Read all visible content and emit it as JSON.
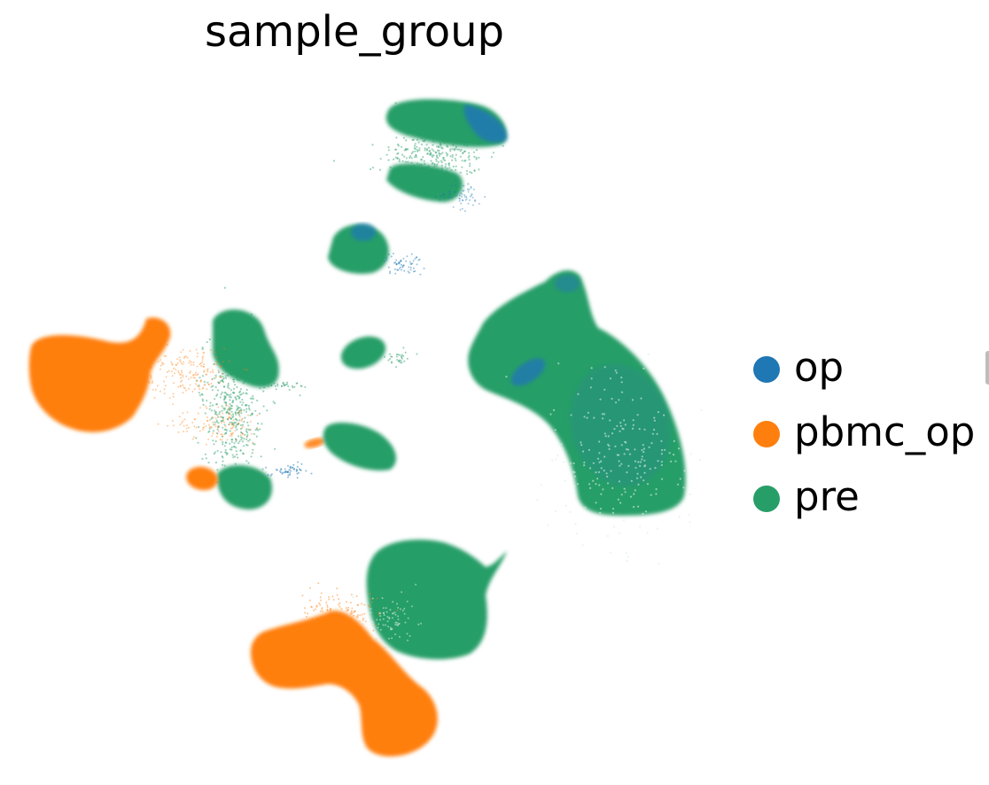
{
  "chart_data": {
    "type": "scatter",
    "title": "sample_group",
    "xlabel": "",
    "ylabel": "",
    "axes_visible": false,
    "grid": false,
    "legend_placement": "right",
    "legend": [
      {
        "label": "op",
        "color": "#1f77b4"
      },
      {
        "label": "pbmc_op",
        "color": "#ff7f0e"
      },
      {
        "label": "pre",
        "color": "#279e68"
      }
    ]
  }
}
